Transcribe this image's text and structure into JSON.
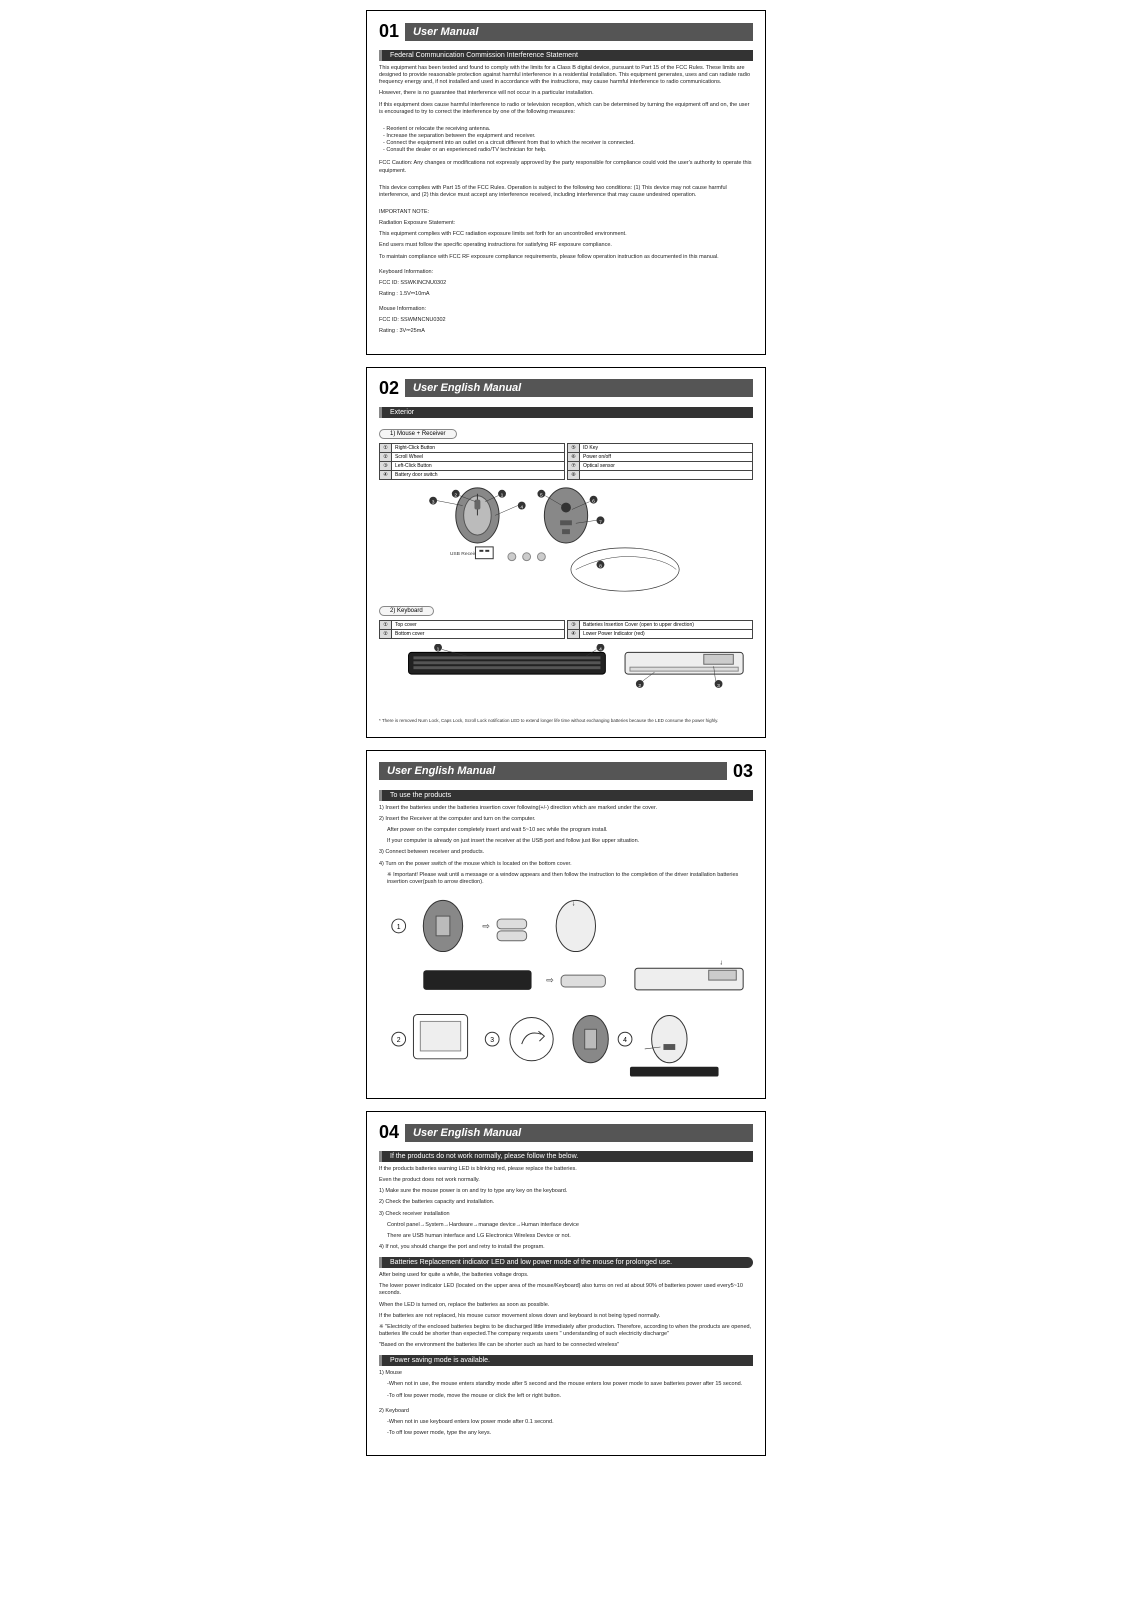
{
  "page01": {
    "num": "01",
    "title": "User Manual",
    "section": "Federal Communication Commission Interference Statement",
    "p1": "This equipment has been tested and found to comply with the limits for a Class B digital device, pursuant to Part 15 of the FCC Rules. These limits are designed to provide reasonable protection against harmful interference in a residential installation. This equipment generates, uses and can radiate radio frequency energy and, if not installed and used in accordance with the instructions, may cause harmful interference to radio communications.",
    "p2": "However, there is no guarantee that interference will not occur in a particular installation.",
    "p3": "If this equipment does cause harmful interference to radio or television reception, which can be determined by turning the equipment off and on, the user is encouraged to try to correct the interference by one of the following measures:",
    "b1": "- Reorient or relocate the receiving antenna.",
    "b2": "- Increase the separation between the equipment and receiver.",
    "b3": "- Connect the equipment into an outlet on a circuit different from that to which the receiver is connected.",
    "b4": "- Consult the dealer or an experienced radio/TV technician for help.",
    "caution": "FCC Caution: Any changes or modifications not expressly approved by the party responsible for compliance could void the user's authority to operate this equipment.",
    "p4": "This device complies with Part 15 of the FCC Rules. Operation is subject to the following two conditions: (1) This device may not cause harmful interference, and (2) this device must accept any interference received, including interference that may cause undesired operation.",
    "note_head": "IMPORTANT NOTE:",
    "note1": "Radiation Exposure Statement:",
    "note2": "This equipment complies with FCC radiation exposure limits set forth for an uncontrolled environment.",
    "note3": "End users must follow the specific operating instructions for satisfying RF exposure compliance.",
    "note4": "To maintain compliance with FCC RF exposure compliance requirements, please follow operation instruction as documented in this manual.",
    "kb_head": "Keyboard Information:",
    "kb_fcc": "FCC ID: SSWKINCNU0302",
    "kb_rating": "Rating : 1.5V⎓10mA",
    "ms_head": "Mouse Information:",
    "ms_fcc": "FCC ID: SSWMNCNU0302",
    "ms_rating": "Rating : 3V⎓25mA"
  },
  "page02": {
    "num": "02",
    "title": "User English Manual",
    "section": "Exterior",
    "tab1": "1) Mouse + Receiver",
    "tab2": "2) Keyboard",
    "mouse_parts_left": [
      {
        "n": "①",
        "l": "Right-Click Button"
      },
      {
        "n": "②",
        "l": "Scroll Wheel"
      },
      {
        "n": "③",
        "l": "Left-Click Button"
      },
      {
        "n": "④",
        "l": "Battery door switch"
      }
    ],
    "mouse_parts_right": [
      {
        "n": "⑤",
        "l": "ID Key"
      },
      {
        "n": "⑥",
        "l": "Power on/off"
      },
      {
        "n": "⑦",
        "l": "Optical sensor"
      },
      {
        "n": "⑧",
        "l": ""
      }
    ],
    "usb_label": "USB Receiver",
    "kb_parts_left": [
      {
        "n": "①",
        "l": "Top cover"
      },
      {
        "n": "②",
        "l": "Bottom cover"
      }
    ],
    "kb_parts_right": [
      {
        "n": "③",
        "l": "Batteries Insertion Cover (open to upper direction)"
      },
      {
        "n": "④",
        "l": "Lower Power Indicator (red)"
      }
    ],
    "footnote": "* There is removed Num Lock, Caps Lock, Scroll Lock notification LED to extend longer life time without exchanging batteries because the LED consume the power highly."
  },
  "page03": {
    "num": "03",
    "title": "User English Manual",
    "section": "To use the products",
    "s1": "1) Insert the batteries under the batteries insertion cover following(+/-) direction which are marked under the cover.",
    "s2": "2) Insert the Receiver at the computer and turn on the computer.",
    "s2a": "After power on the computer completely insert and wait 5~10 sec while the program install.",
    "s2b": "If your computer is already on just insert the receiver at the USB port and follow just like upper situation.",
    "s3": "3) Connect between receiver and products.",
    "s4": "4) Turn on the power switch of the mouse which is located on the bottom cover.",
    "imp": "※ Important! Please wait until a message or a window appears and then follow the instruction to the completion of the driver installation batteries insertion cover(push to arrow direction)."
  },
  "page04": {
    "num": "04",
    "title": "User English Manual",
    "section1": "If the products do not work normally, please follow the below.",
    "p1": "If the products batteries warning LED is blinking red, please replace the batteries.",
    "p2": "Even the product does not work normally.",
    "l1": "1) Make sure the mouse power is on and try to type any key on the keyboard.",
    "l2": "2) Check the batteries capacity and installation.",
    "l3": "3) Check receiver installation",
    "l3a": "Control panel→System→Hardware→manage device→Human interface device",
    "l3b": "There are USB human interface and LG Electronics Wireless Device or not.",
    "l4": "4) If not, you should change the port and retry to install the program.",
    "section2": "Batteries Replacement indicator LED and low power mode of the mouse for prolonged use.",
    "b1": "After being used for quite a while, the batteries voltage drops.",
    "b2": "The lower power indicator LED (located on the upper area of the mouse/Keyboard) also turns on red at about 90% of batteries power used every5~10 seconds.",
    "b3": "When the LED is turned on, replace the batteries as soon as possible.",
    "b4": "If the batteries are not replaced, his mouse cursor movement slows down and keyboard is not being typed normally.",
    "b5": "※ \"Electricity of the enclosed batteries begins to be discharged little immediately after production. Therefore, according to when the products are opened, batteries life could be shorter than expected.The company requests users \" understanding of such electricity discharge\"",
    "b6": "\"Based on the environment the batteries life can be shorter such as hard to be connected wireless\"",
    "section3": "Power saving mode is available.",
    "ps1": "1) Mouse",
    "ps1a": "-When not in use, the mouse enters standby mode after 5 second and the mouse enters low power mode to save batteries power after 15 second.",
    "ps1b": "-To off low power mode, move the mouse or click the left or right button.",
    "ps2": "2) Keyboard",
    "ps2a": "-When not in use keyboard enters low power mode after 0.1 second.",
    "ps2b": "-To off low power mode, type the any keys."
  }
}
